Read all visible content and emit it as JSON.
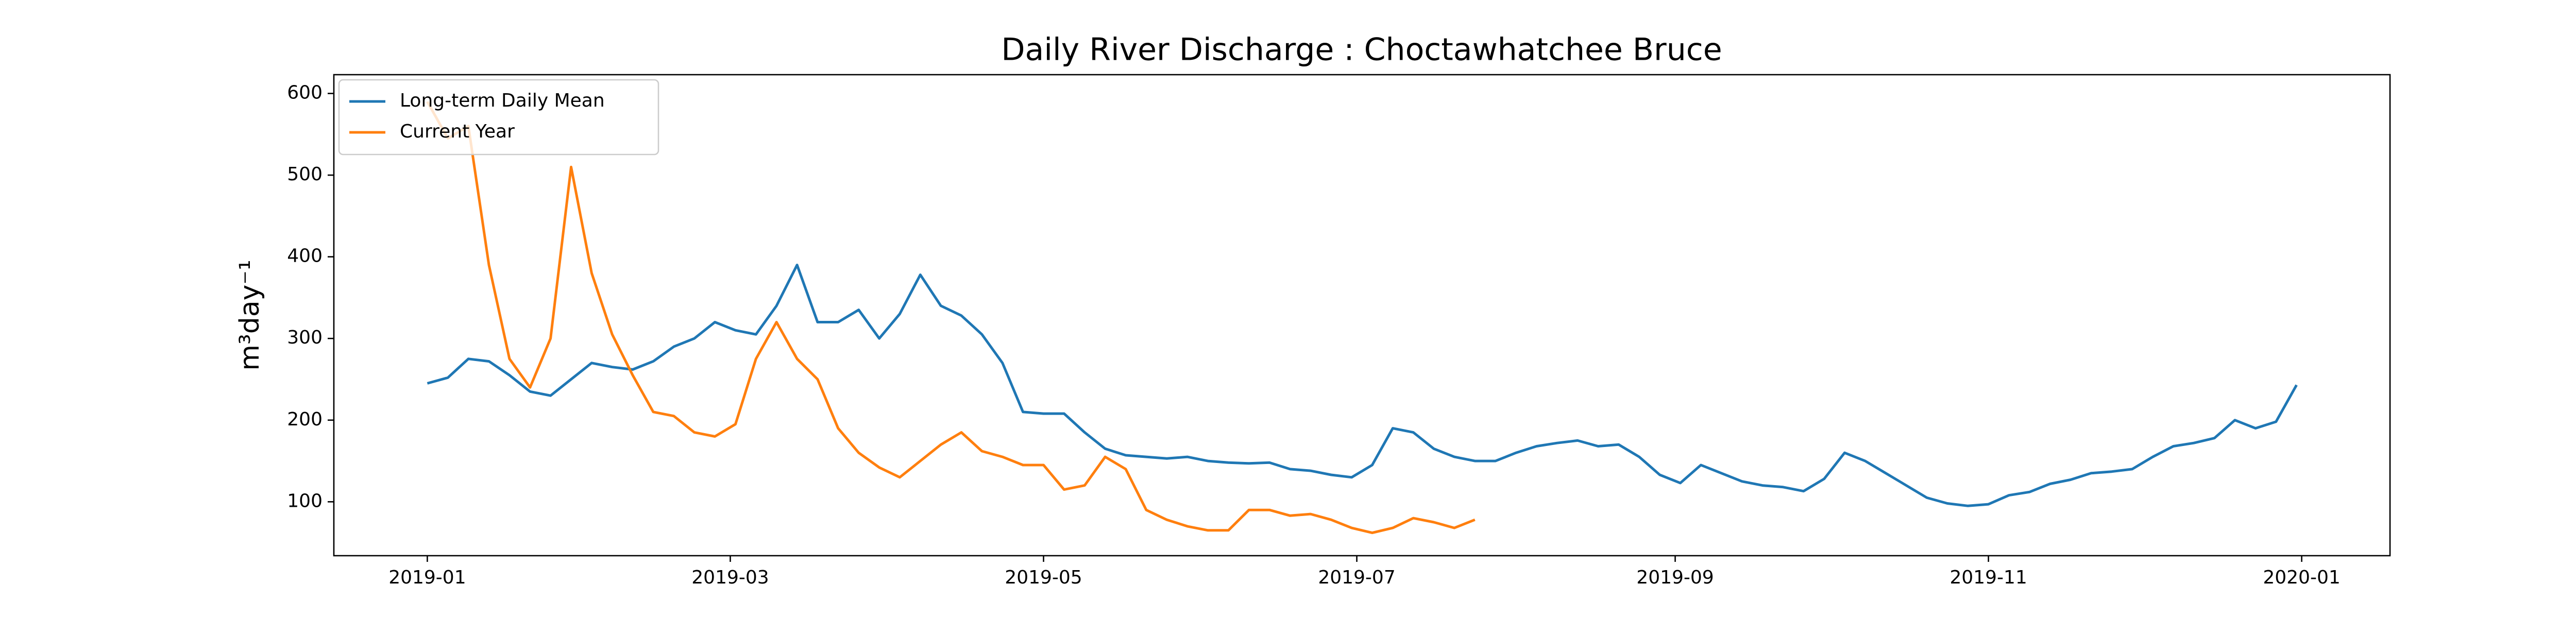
{
  "chart_data": {
    "type": "line",
    "title": "Daily River Discharge : Choctawhatchee Bruce",
    "y_label": "m³day⁻¹",
    "x": [
      0,
      4,
      8,
      12,
      16,
      20,
      24,
      28,
      32,
      36,
      40,
      44,
      48,
      52,
      56,
      60,
      64,
      68,
      72,
      76,
      80,
      84,
      88,
      92,
      96,
      100,
      104,
      108,
      112,
      116,
      120,
      124,
      128,
      132,
      136,
      140,
      144,
      148,
      152,
      156,
      160,
      164,
      168,
      172,
      176,
      180,
      184,
      188,
      192,
      196,
      200,
      204,
      208,
      212,
      216,
      220,
      224,
      228,
      232,
      236,
      240,
      244,
      248,
      252,
      256,
      260,
      264,
      268,
      272,
      276,
      280,
      284,
      288,
      292,
      296,
      300,
      304,
      308,
      312,
      316,
      320,
      324,
      328,
      332,
      336,
      340,
      344,
      348,
      352,
      356,
      360,
      364
    ],
    "series": [
      {
        "name": "Long-term Daily Mean",
        "color": "#1f77b4",
        "values": [
          245,
          252,
          275,
          272,
          255,
          235,
          230,
          250,
          270,
          265,
          262,
          272,
          290,
          300,
          320,
          310,
          305,
          340,
          390,
          320,
          320,
          335,
          300,
          330,
          378,
          340,
          328,
          305,
          270,
          210,
          208,
          208,
          185,
          165,
          157,
          155,
          153,
          155,
          150,
          148,
          147,
          148,
          140,
          138,
          133,
          130,
          145,
          190,
          185,
          165,
          155,
          150,
          150,
          160,
          168,
          172,
          175,
          168,
          170,
          155,
          133,
          123,
          145,
          135,
          125,
          120,
          118,
          113,
          128,
          160,
          150,
          135,
          120,
          105,
          98,
          95,
          97,
          108,
          112,
          122,
          127,
          135,
          137,
          140,
          155,
          168,
          172,
          178,
          200,
          190,
          198,
          243
        ]
      },
      {
        "name": "Current Year",
        "color": "#ff7f0e",
        "values": [
          590,
          545,
          560,
          390,
          275,
          240,
          300,
          510,
          380,
          305,
          255,
          210,
          205,
          185,
          180,
          195,
          275,
          320,
          275,
          250,
          190,
          160,
          142,
          130,
          150,
          170,
          185,
          162,
          155,
          145,
          145,
          115,
          120,
          155,
          140,
          90,
          78,
          70,
          65,
          65,
          90,
          90,
          83,
          85,
          78,
          68,
          62,
          68,
          80,
          75,
          68,
          78,
          null,
          null,
          null,
          null,
          null,
          null,
          null,
          null,
          null,
          null,
          null,
          null,
          null,
          null,
          null,
          null,
          null,
          null,
          null,
          null,
          null,
          null,
          null,
          null,
          null,
          null,
          null,
          null,
          null,
          null,
          null,
          null,
          null,
          null,
          null,
          null,
          null,
          null,
          null,
          null
        ]
      }
    ],
    "xlim": [
      -18.2,
      382.2
    ],
    "xticks": [
      {
        "value": 0,
        "label": "2019-01"
      },
      {
        "value": 59,
        "label": "2019-03"
      },
      {
        "value": 120,
        "label": "2019-05"
      },
      {
        "value": 181,
        "label": "2019-07"
      },
      {
        "value": 243,
        "label": "2019-09"
      },
      {
        "value": 304,
        "label": "2019-11"
      },
      {
        "value": 365,
        "label": "2020-01"
      }
    ],
    "ylim": [
      34,
      623
    ],
    "yticks": [
      100,
      200,
      300,
      400,
      500,
      600
    ],
    "legend": "upper left",
    "grid": false
  }
}
